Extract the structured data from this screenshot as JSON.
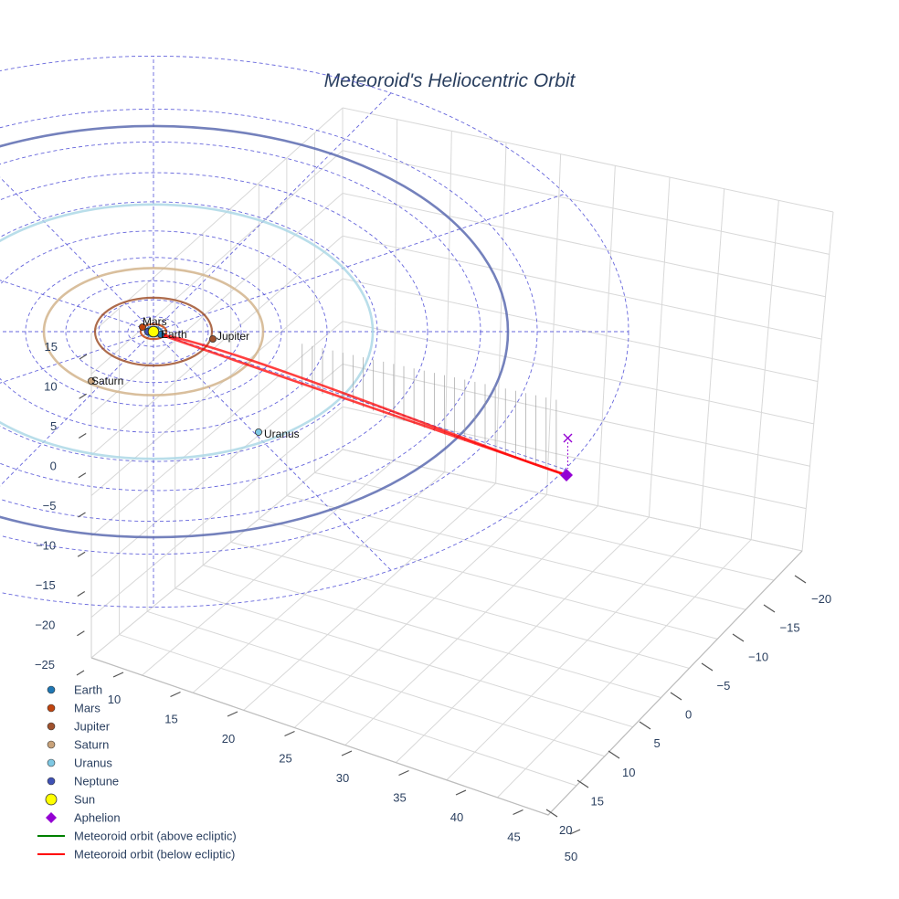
{
  "chart_data": {
    "type": "scatter3d",
    "title": "Meteoroid's Heliocentric Orbit",
    "axes": {
      "x": {
        "ticks": [
          "10",
          "15",
          "20",
          "25",
          "30",
          "35",
          "40",
          "45",
          "50"
        ]
      },
      "y": {
        "ticks": [
          "−20",
          "−15",
          "−10",
          "−5",
          "0",
          "5",
          "10",
          "15",
          "20"
        ]
      },
      "z": {
        "ticks": [
          "15",
          "10",
          "5",
          "0",
          "−5",
          "−10",
          "−15",
          "−20",
          "−25"
        ]
      }
    },
    "planets": [
      {
        "name": "Earth",
        "color": "#1f77b4",
        "orbit_color": "#1f77b4",
        "semi_major_axis_au": 1.0
      },
      {
        "name": "Mars",
        "color": "#c1440e",
        "orbit_color": "#c1440e",
        "semi_major_axis_au": 1.52
      },
      {
        "name": "Jupiter",
        "color": "#a0522d",
        "orbit_color": "#a0522d",
        "semi_major_axis_au": 5.2
      },
      {
        "name": "Saturn",
        "color": "#c8a27a",
        "orbit_color": "#d2b48c",
        "semi_major_axis_au": 9.58
      },
      {
        "name": "Uranus",
        "color": "#7ec8e3",
        "orbit_color": "#add8e6",
        "semi_major_axis_au": 19.2
      },
      {
        "name": "Neptune",
        "color": "#3f51b5",
        "orbit_color": "#5c6bb0",
        "semi_major_axis_au": 30.1
      }
    ],
    "sun": {
      "name": "Sun",
      "color": "#ffff00"
    },
    "aphelion": {
      "name": "Aphelion",
      "color": "#9400d3"
    },
    "orbit_series": [
      {
        "name": "Meteoroid orbit (above ecliptic)",
        "color": "#008000"
      },
      {
        "name": "Meteoroid orbit (below ecliptic)",
        "color": "#ff0000"
      }
    ],
    "legend": {
      "position": "bottom-left",
      "items": [
        {
          "label": "Earth",
          "symbol": "circle",
          "color": "#1f77b4"
        },
        {
          "label": "Mars",
          "symbol": "circle",
          "color": "#c1440e"
        },
        {
          "label": "Jupiter",
          "symbol": "circle",
          "color": "#a0522d"
        },
        {
          "label": "Saturn",
          "symbol": "circle",
          "color": "#c8a27a"
        },
        {
          "label": "Uranus",
          "symbol": "circle",
          "color": "#7ec8e3"
        },
        {
          "label": "Neptune",
          "symbol": "circle",
          "color": "#3f51b5"
        },
        {
          "label": "Sun",
          "symbol": "big-circle",
          "color": "#ffff00"
        },
        {
          "label": "Aphelion",
          "symbol": "diamond",
          "color": "#9400d3"
        },
        {
          "label": "Meteoroid orbit (above ecliptic)",
          "symbol": "line",
          "color": "#008000"
        },
        {
          "label": "Meteoroid orbit (below ecliptic)",
          "symbol": "line",
          "color": "#ff0000"
        }
      ]
    },
    "grid": true,
    "ecliptic_grid": true
  }
}
